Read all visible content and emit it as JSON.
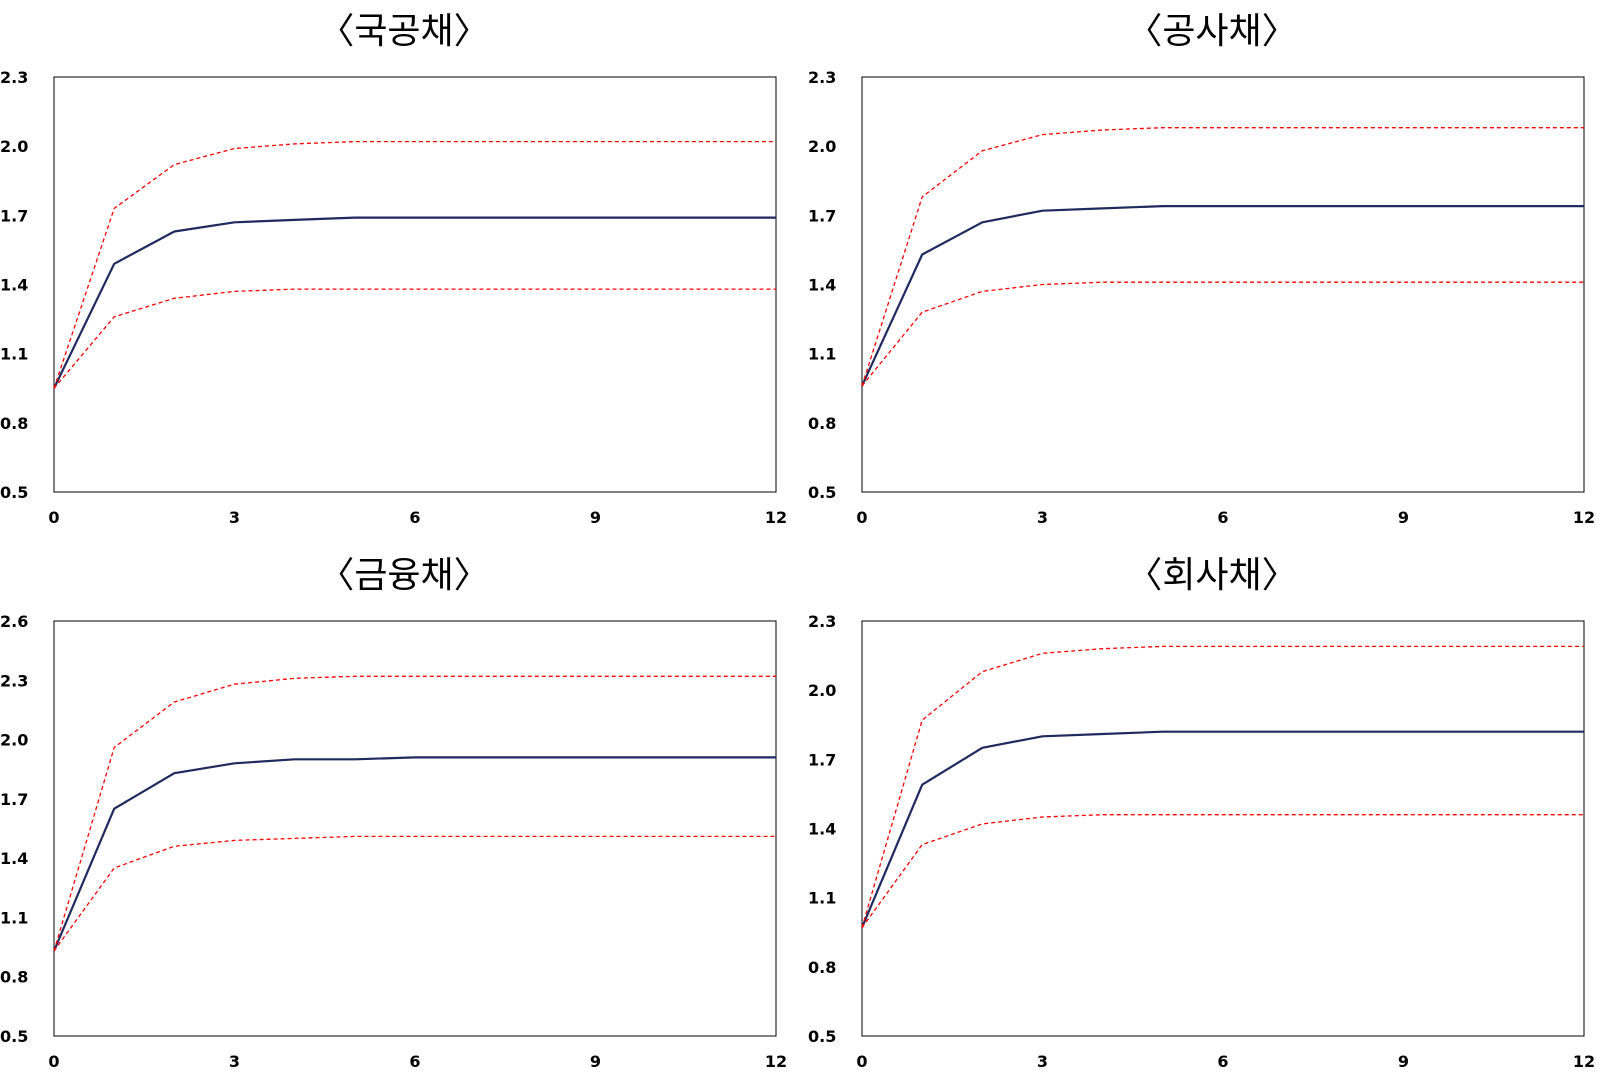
{
  "chart_data": [
    {
      "type": "line",
      "title": "〈국공채〉",
      "x": [
        0,
        1,
        2,
        3,
        4,
        5,
        6,
        7,
        8,
        9,
        10,
        11,
        12
      ],
      "xticks": [
        0,
        3,
        6,
        9,
        12
      ],
      "xlim": [
        0,
        12
      ],
      "ylim": [
        0.5,
        2.3
      ],
      "yticks": [
        "0.5",
        "0.8",
        "1.1",
        "1.4",
        "1.7",
        "2.0",
        "2.3"
      ],
      "grid": false,
      "series": [
        {
          "role": "estimate",
          "style": "solid",
          "color": "#1f2a5e",
          "values": [
            0.95,
            1.49,
            1.63,
            1.67,
            1.68,
            1.69,
            1.69,
            1.69,
            1.69,
            1.69,
            1.69,
            1.69,
            1.69
          ]
        },
        {
          "role": "upper-band",
          "style": "dashed",
          "color": "#ff0000",
          "values": [
            0.95,
            1.73,
            1.92,
            1.99,
            2.01,
            2.02,
            2.02,
            2.02,
            2.02,
            2.02,
            2.02,
            2.02,
            2.02
          ]
        },
        {
          "role": "lower-band",
          "style": "dashed",
          "color": "#ff0000",
          "values": [
            0.95,
            1.26,
            1.34,
            1.37,
            1.38,
            1.38,
            1.38,
            1.38,
            1.38,
            1.38,
            1.38,
            1.38,
            1.38
          ]
        }
      ]
    },
    {
      "type": "line",
      "title": "〈공사채〉",
      "x": [
        0,
        1,
        2,
        3,
        4,
        5,
        6,
        7,
        8,
        9,
        10,
        11,
        12
      ],
      "xticks": [
        0,
        3,
        6,
        9,
        12
      ],
      "xlim": [
        0,
        12
      ],
      "ylim": [
        0.5,
        2.3
      ],
      "yticks": [
        "0.5",
        "0.8",
        "1.1",
        "1.4",
        "1.7",
        "2.0",
        "2.3"
      ],
      "grid": false,
      "series": [
        {
          "role": "estimate",
          "style": "solid",
          "color": "#1f2a5e",
          "values": [
            0.96,
            1.53,
            1.67,
            1.72,
            1.73,
            1.74,
            1.74,
            1.74,
            1.74,
            1.74,
            1.74,
            1.74,
            1.74
          ]
        },
        {
          "role": "upper-band",
          "style": "dashed",
          "color": "#ff0000",
          "values": [
            0.96,
            1.78,
            1.98,
            2.05,
            2.07,
            2.08,
            2.08,
            2.08,
            2.08,
            2.08,
            2.08,
            2.08,
            2.08
          ]
        },
        {
          "role": "lower-band",
          "style": "dashed",
          "color": "#ff0000",
          "values": [
            0.96,
            1.28,
            1.37,
            1.4,
            1.41,
            1.41,
            1.41,
            1.41,
            1.41,
            1.41,
            1.41,
            1.41,
            1.41
          ]
        }
      ]
    },
    {
      "type": "line",
      "title": "〈금융채〉",
      "x": [
        0,
        1,
        2,
        3,
        4,
        5,
        6,
        7,
        8,
        9,
        10,
        11,
        12
      ],
      "xticks": [
        0,
        3,
        6,
        9,
        12
      ],
      "xlim": [
        0,
        12
      ],
      "ylim": [
        0.5,
        2.6
      ],
      "yticks": [
        "0.5",
        "0.8",
        "1.1",
        "1.4",
        "1.7",
        "2.0",
        "2.3",
        "2.6"
      ],
      "grid": false,
      "series": [
        {
          "role": "estimate",
          "style": "solid",
          "color": "#1f2a5e",
          "values": [
            0.93,
            1.65,
            1.83,
            1.88,
            1.9,
            1.9,
            1.91,
            1.91,
            1.91,
            1.91,
            1.91,
            1.91,
            1.91
          ]
        },
        {
          "role": "upper-band",
          "style": "dashed",
          "color": "#ff0000",
          "values": [
            0.93,
            1.96,
            2.19,
            2.28,
            2.31,
            2.32,
            2.32,
            2.32,
            2.32,
            2.32,
            2.32,
            2.32,
            2.32
          ]
        },
        {
          "role": "lower-band",
          "style": "dashed",
          "color": "#ff0000",
          "values": [
            0.93,
            1.35,
            1.46,
            1.49,
            1.5,
            1.51,
            1.51,
            1.51,
            1.51,
            1.51,
            1.51,
            1.51,
            1.51
          ]
        }
      ]
    },
    {
      "type": "line",
      "title": "〈회사채〉",
      "x": [
        0,
        1,
        2,
        3,
        4,
        5,
        6,
        7,
        8,
        9,
        10,
        11,
        12
      ],
      "xticks": [
        0,
        3,
        6,
        9,
        12
      ],
      "xlim": [
        0,
        12
      ],
      "ylim": [
        0.5,
        2.3
      ],
      "yticks": [
        "0.5",
        "0.8",
        "1.1",
        "1.4",
        "1.7",
        "2.0",
        "2.3"
      ],
      "grid": false,
      "series": [
        {
          "role": "estimate",
          "style": "solid",
          "color": "#1f2a5e",
          "values": [
            0.97,
            1.59,
            1.75,
            1.8,
            1.81,
            1.82,
            1.82,
            1.82,
            1.82,
            1.82,
            1.82,
            1.82,
            1.82
          ]
        },
        {
          "role": "upper-band",
          "style": "dashed",
          "color": "#ff0000",
          "values": [
            0.97,
            1.87,
            2.08,
            2.16,
            2.18,
            2.19,
            2.19,
            2.19,
            2.19,
            2.19,
            2.19,
            2.19,
            2.19
          ]
        },
        {
          "role": "lower-band",
          "style": "dashed",
          "color": "#ff0000",
          "values": [
            0.97,
            1.33,
            1.42,
            1.45,
            1.46,
            1.46,
            1.46,
            1.46,
            1.46,
            1.46,
            1.46,
            1.46,
            1.46
          ]
        }
      ]
    }
  ]
}
